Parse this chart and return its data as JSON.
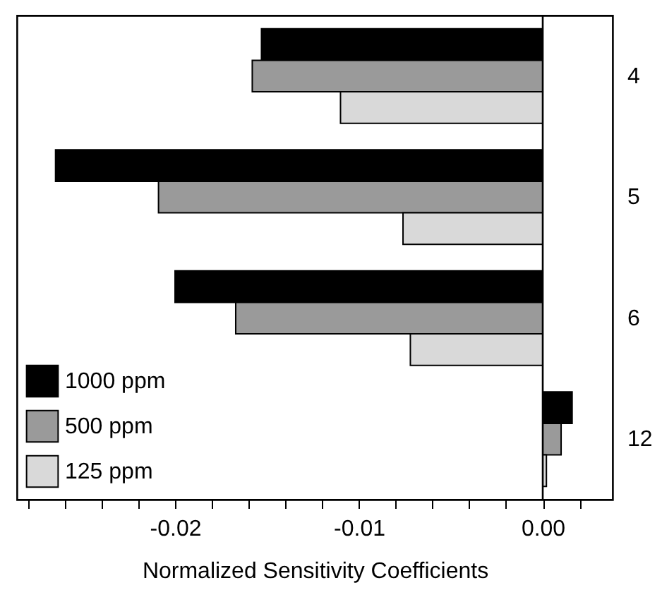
{
  "chart_data": {
    "type": "bar",
    "orientation": "horizontal",
    "xlabel": "Normalized Sensitivity Coefficients",
    "categories": [
      "4",
      "5",
      "6",
      "12"
    ],
    "series": [
      {
        "name": "1000 ppm",
        "color": "#000000",
        "values": [
          -0.0153,
          -0.0265,
          -0.02,
          0.0016
        ]
      },
      {
        "name": "500 ppm",
        "color": "#9a9a9a",
        "values": [
          -0.0158,
          -0.0209,
          -0.0167,
          0.001
        ]
      },
      {
        "name": "125 ppm",
        "color": "#d9d9d9",
        "values": [
          -0.011,
          -0.0076,
          -0.0072,
          0.0002
        ]
      }
    ],
    "xlim": [
      -0.0286,
      0.0038
    ],
    "xticks": [
      {
        "value": -0.028,
        "label": null
      },
      {
        "value": -0.026,
        "label": null
      },
      {
        "value": -0.024,
        "label": null
      },
      {
        "value": -0.022,
        "label": null
      },
      -0.02,
      {
        "value": -0.018,
        "label": null
      },
      {
        "value": -0.016,
        "label": null
      },
      {
        "value": -0.014,
        "label": null
      },
      {
        "value": -0.012,
        "label": null
      },
      -0.01,
      {
        "value": -0.008,
        "label": null
      },
      {
        "value": -0.006,
        "label": null
      },
      {
        "value": -0.004,
        "label": null
      },
      {
        "value": -0.002,
        "label": null
      },
      {
        "value": 0,
        "label": "0.00"
      },
      {
        "value": 0.002,
        "label": null
      }
    ],
    "ref_lines": [
      {
        "axis": "x",
        "value": 0
      }
    ],
    "legend": "bottom left",
    "grid": false
  }
}
